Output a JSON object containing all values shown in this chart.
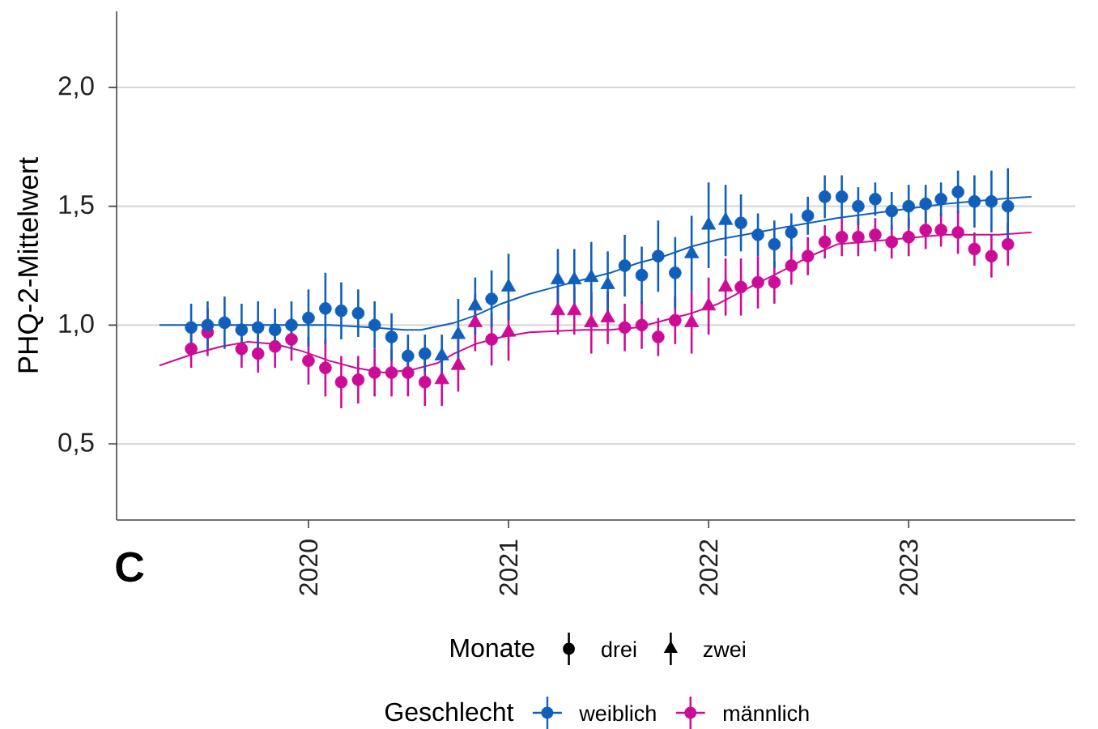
{
  "chart_data": {
    "type": "scatter",
    "ylabel": "PHQ-2-Mittelwert",
    "legend_title": "Geschlecht",
    "annotations": [
      "C",
      "Monate",
      "drei",
      "zwei"
    ],
    "xlim": [
      "2019-01-16",
      "2023-11-01"
    ],
    "xticks": [
      "2020",
      "2021",
      "2022",
      "2023"
    ],
    "ylim": [
      0.18,
      2.32
    ],
    "yticks": [
      {
        "value": 0.5,
        "label": "0,5"
      },
      {
        "value": 1.0,
        "label": "1,0"
      },
      {
        "value": 1.5,
        "label": "1,5"
      },
      {
        "value": 2.0,
        "label": "2,0"
      }
    ],
    "grid": "y",
    "legend": "bottom",
    "series": [
      {
        "name": "weiblich",
        "color": "#1060bb",
        "marker": "circle",
        "x": [
          "2019-06",
          "2019-07",
          "2019-08",
          "2019-09",
          "2019-10",
          "2019-11",
          "2019-12",
          "2020-01",
          "2020-02",
          "2020-03",
          "2020-04",
          "2020-05",
          "2020-06",
          "2020-07",
          "2020-08",
          "2020-12",
          "2021-08",
          "2021-09",
          "2021-10",
          "2021-11",
          "2022-03",
          "2022-04",
          "2022-05",
          "2022-06",
          "2022-07",
          "2022-08",
          "2022-09",
          "2022-10",
          "2022-11",
          "2022-12",
          "2023-01",
          "2023-02",
          "2023-03",
          "2023-04",
          "2023-05",
          "2023-06",
          "2023-07"
        ],
        "values": [
          0.99,
          1.0,
          1.01,
          0.98,
          0.99,
          0.98,
          1.0,
          1.03,
          1.07,
          1.06,
          1.05,
          1.0,
          0.95,
          0.87,
          0.88,
          1.11,
          1.25,
          1.21,
          1.29,
          1.22,
          1.43,
          1.38,
          1.34,
          1.39,
          1.46,
          1.54,
          1.54,
          1.5,
          1.53,
          1.48,
          1.5,
          1.51,
          1.53,
          1.56,
          1.52,
          1.52,
          1.5
        ],
        "errors": [
          0.1,
          0.1,
          0.11,
          0.11,
          0.11,
          0.09,
          0.1,
          0.12,
          0.15,
          0.12,
          0.1,
          0.1,
          0.1,
          0.09,
          0.08,
          0.12,
          0.13,
          0.12,
          0.15,
          0.15,
          0.12,
          0.09,
          0.1,
          0.08,
          0.08,
          0.09,
          0.09,
          0.08,
          0.07,
          0.08,
          0.09,
          0.08,
          0.07,
          0.09,
          0.11,
          0.13,
          0.16
        ]
      },
      {
        "color": "#1060bb",
        "marker": "triangle",
        "x": [
          "2020-09",
          "2020-10",
          "2020-11",
          "2021-01",
          "2021-04",
          "2021-05",
          "2021-06",
          "2021-07",
          "2021-12",
          "2022-01",
          "2022-02"
        ],
        "values": [
          0.87,
          0.96,
          1.08,
          1.16,
          1.19,
          1.19,
          1.2,
          1.17,
          1.3,
          1.42,
          1.44
        ],
        "errors": [
          0.09,
          0.15,
          0.12,
          0.14,
          0.13,
          0.13,
          0.15,
          0.14,
          0.16,
          0.18,
          0.15
        ]
      },
      {
        "name": "männlich",
        "color": "#cc0c96",
        "marker": "circle",
        "x": [
          "2019-06",
          "2019-07",
          "2019-08",
          "2019-09",
          "2019-10",
          "2019-11",
          "2019-12",
          "2020-01",
          "2020-02",
          "2020-03",
          "2020-04",
          "2020-05",
          "2020-06",
          "2020-07",
          "2020-08",
          "2020-12",
          "2021-08",
          "2021-09",
          "2021-10",
          "2021-11",
          "2022-03",
          "2022-04",
          "2022-05",
          "2022-06",
          "2022-07",
          "2022-08",
          "2022-09",
          "2022-10",
          "2022-11",
          "2022-12",
          "2023-01",
          "2023-02",
          "2023-03",
          "2023-04",
          "2023-05",
          "2023-06",
          "2023-07"
        ],
        "values": [
          0.9,
          0.97,
          null,
          0.9,
          0.88,
          0.91,
          0.94,
          0.85,
          0.82,
          0.76,
          0.77,
          0.8,
          0.8,
          0.8,
          0.76,
          0.94,
          0.99,
          1.0,
          0.95,
          1.02,
          1.16,
          1.18,
          1.18,
          1.25,
          1.29,
          1.35,
          1.37,
          1.37,
          1.38,
          1.35,
          1.37,
          1.4,
          1.4,
          1.39,
          1.32,
          1.29,
          1.34
        ],
        "errors": [
          0.08,
          0.1,
          null,
          0.08,
          0.08,
          0.09,
          0.09,
          0.1,
          0.12,
          0.11,
          0.1,
          0.1,
          0.1,
          0.1,
          0.1,
          0.11,
          0.1,
          0.1,
          0.08,
          0.1,
          0.12,
          0.11,
          0.09,
          0.08,
          0.08,
          0.07,
          0.08,
          0.08,
          0.07,
          0.07,
          0.08,
          0.08,
          0.07,
          0.09,
          0.07,
          0.09,
          0.09
        ]
      },
      {
        "color": "#cc0c96",
        "marker": "triangle",
        "x": [
          "2020-09",
          "2020-10",
          "2020-11",
          "2021-01",
          "2021-04",
          "2021-05",
          "2021-06",
          "2021-07",
          "2021-12",
          "2022-01",
          "2022-02"
        ],
        "values": [
          0.77,
          0.83,
          1.01,
          0.97,
          1.06,
          1.06,
          1.01,
          1.03,
          1.01,
          1.08,
          1.16
        ],
        "errors": [
          0.11,
          0.11,
          0.12,
          0.12,
          0.1,
          0.1,
          0.13,
          0.11,
          0.13,
          0.12,
          0.12
        ]
      },
      {
        "type": "line",
        "color": "#1060bb",
        "x": [
          "2019-04-04",
          "2019-07-28",
          "2019-11-26",
          "2020-02-10",
          "2020-04-25",
          "2020-06-25",
          "2020-07-25",
          "2020-09-24",
          "2020-11-01",
          "2020-12-19",
          "2021-02-06",
          "2021-03-27",
          "2021-05-16",
          "2021-07-06",
          "2021-08-24",
          "2021-10-12",
          "2021-11-30",
          "2022-01-18",
          "2022-03-08",
          "2022-05-16",
          "2022-08-23",
          "2022-11-29",
          "2023-03-08",
          "2023-06-14",
          "2023-08-13"
        ],
        "values": [
          1.0,
          1.0,
          1.0,
          1.0,
          0.99,
          0.98,
          0.98,
          1.01,
          1.04,
          1.09,
          1.13,
          1.16,
          1.19,
          1.22,
          1.26,
          1.29,
          1.33,
          1.36,
          1.38,
          1.41,
          1.45,
          1.48,
          1.51,
          1.53,
          1.54
        ]
      },
      {
        "type": "line",
        "color": "#cc0c96",
        "x": [
          "2019-04-04",
          "2019-06-07",
          "2019-07-26",
          "2019-09-13",
          "2019-11-01",
          "2019-12-21",
          "2020-02-08",
          "2020-03-28",
          "2020-05-17",
          "2020-07-05",
          "2020-08-24",
          "2020-09-23",
          "2020-11-01",
          "2020-12-20",
          "2021-02-08",
          "2021-03-29",
          "2021-05-17",
          "2021-07-06",
          "2021-08-24",
          "2021-10-12",
          "2021-12-01",
          "2022-01-19",
          "2022-03-09",
          "2022-05-17",
          "2022-07-05",
          "2022-08-24",
          "2022-10-12",
          "2022-11-30",
          "2023-03-08",
          "2023-06-15",
          "2023-08-13"
        ],
        "values": [
          0.83,
          0.88,
          0.91,
          0.93,
          0.92,
          0.89,
          0.85,
          0.82,
          0.8,
          0.81,
          0.84,
          0.88,
          0.92,
          0.95,
          0.97,
          0.975,
          0.98,
          0.98,
          0.99,
          1.02,
          1.05,
          1.09,
          1.15,
          1.23,
          1.29,
          1.34,
          1.35,
          1.36,
          1.38,
          1.38,
          1.39
        ]
      }
    ]
  }
}
